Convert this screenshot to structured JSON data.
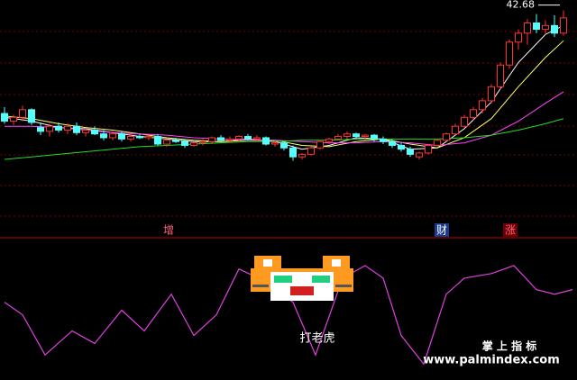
{
  "chart_data": [
    {
      "type": "candlestick",
      "ylim": [
        25,
        43.5
      ],
      "up_color": "#ff3232",
      "down_color": "#54ffff",
      "candles": [
        [
          34.6,
          35.1,
          33.8,
          34.0
        ],
        [
          34.0,
          34.5,
          33.7,
          34.3
        ],
        [
          34.3,
          35.2,
          34.0,
          34.9
        ],
        [
          34.9,
          35.0,
          33.7,
          33.9
        ],
        [
          33.5,
          33.9,
          32.9,
          33.2
        ],
        [
          33.2,
          33.8,
          32.8,
          33.6
        ],
        [
          33.6,
          33.9,
          33.1,
          33.3
        ],
        [
          33.3,
          33.8,
          33.0,
          33.6
        ],
        [
          33.6,
          33.9,
          32.9,
          33.1
        ],
        [
          33.1,
          33.4,
          32.8,
          33.3
        ],
        [
          33.3,
          33.6,
          32.9,
          33.0
        ],
        [
          33.0,
          33.3,
          32.5,
          32.7
        ],
        [
          32.7,
          33.2,
          32.5,
          33.0
        ],
        [
          33.0,
          33.2,
          32.4,
          32.6
        ],
        [
          32.6,
          33.0,
          32.4,
          32.8
        ],
        [
          32.8,
          33.0,
          32.6,
          32.7
        ],
        [
          32.7,
          32.9,
          32.5,
          32.8
        ],
        [
          32.8,
          33.0,
          32.1,
          32.2
        ],
        [
          32.2,
          32.6,
          32.0,
          32.5
        ],
        [
          32.5,
          32.7,
          32.3,
          32.4
        ],
        [
          32.4,
          32.6,
          31.9,
          32.1
        ],
        [
          32.1,
          32.4,
          32.0,
          32.3
        ],
        [
          32.3,
          32.6,
          32.1,
          32.4
        ],
        [
          32.4,
          32.8,
          32.2,
          32.7
        ],
        [
          32.7,
          32.9,
          32.4,
          32.5
        ],
        [
          32.5,
          32.8,
          32.3,
          32.6
        ],
        [
          32.6,
          32.9,
          32.4,
          32.8
        ],
        [
          32.8,
          33.0,
          32.5,
          32.6
        ],
        [
          32.6,
          32.9,
          32.4,
          32.7
        ],
        [
          32.7,
          32.8,
          32.1,
          32.2
        ],
        [
          32.2,
          32.5,
          32.0,
          32.3
        ],
        [
          32.3,
          32.4,
          31.7,
          31.9
        ],
        [
          31.9,
          32.1,
          30.9,
          31.2
        ],
        [
          31.2,
          31.5,
          31.0,
          31.4
        ],
        [
          31.4,
          32.0,
          31.3,
          31.9
        ],
        [
          31.9,
          32.5,
          31.8,
          32.4
        ],
        [
          32.4,
          32.7,
          32.2,
          32.6
        ],
        [
          32.6,
          33.0,
          32.5,
          32.8
        ],
        [
          32.8,
          33.2,
          32.6,
          33.0
        ],
        [
          33.0,
          33.1,
          32.6,
          32.8
        ],
        [
          32.8,
          33.0,
          32.5,
          32.9
        ],
        [
          32.9,
          33.0,
          32.4,
          32.6
        ],
        [
          32.6,
          32.8,
          32.2,
          32.4
        ],
        [
          32.4,
          32.6,
          31.9,
          32.1
        ],
        [
          32.1,
          32.3,
          31.6,
          31.8
        ],
        [
          31.8,
          32.0,
          31.2,
          31.4
        ],
        [
          31.2,
          31.6,
          31.0,
          31.5
        ],
        [
          31.5,
          32.2,
          31.4,
          32.1
        ],
        [
          32.1,
          32.6,
          32.0,
          32.5
        ],
        [
          32.5,
          33.1,
          32.4,
          33.0
        ],
        [
          33.0,
          33.8,
          32.9,
          33.6
        ],
        [
          33.6,
          34.5,
          33.5,
          34.3
        ],
        [
          34.3,
          35.1,
          34.1,
          34.9
        ],
        [
          34.9,
          35.8,
          34.6,
          35.6
        ],
        [
          35.6,
          36.9,
          35.4,
          36.7
        ],
        [
          36.7,
          38.6,
          36.5,
          38.4
        ],
        [
          38.4,
          40.4,
          38.1,
          40.2
        ],
        [
          40.2,
          41.2,
          39.6,
          40.9
        ],
        [
          40.9,
          42.0,
          40.0,
          41.7
        ],
        [
          41.7,
          42.4,
          40.9,
          41.2
        ],
        [
          41.2,
          41.9,
          40.8,
          41.5
        ],
        [
          41.5,
          42.3,
          40.6,
          40.9
        ],
        [
          40.9,
          42.68,
          40.7,
          42.1
        ]
      ],
      "x": [
        0,
        3,
        6,
        9,
        12,
        15,
        18,
        21,
        24,
        27,
        30,
        33,
        36,
        39,
        42,
        45,
        48,
        51,
        54,
        57,
        60,
        62
      ],
      "series": [
        {
          "color": "#ffffff",
          "values": [
            34.3,
            34.0,
            33.5,
            33.4,
            33.1,
            32.8,
            32.6,
            32.4,
            32.4,
            32.6,
            32.4,
            31.8,
            32.1,
            32.7,
            32.6,
            31.8,
            31.9,
            33.4,
            35.5,
            38.6,
            40.8,
            41.5
          ]
        },
        {
          "color": "#ffff66",
          "values": [
            34.4,
            34.2,
            33.8,
            33.5,
            33.3,
            33.0,
            32.7,
            32.5,
            32.4,
            32.5,
            32.5,
            32.1,
            32.0,
            32.4,
            32.6,
            32.2,
            31.9,
            32.7,
            34.2,
            36.7,
            39.0,
            40.3
          ]
        },
        {
          "color": "#ff44ff",
          "values": [
            33.6,
            33.6,
            33.5,
            33.3,
            33.1,
            33.0,
            32.9,
            32.7,
            32.6,
            32.5,
            32.5,
            32.4,
            32.3,
            32.3,
            32.4,
            32.3,
            32.1,
            32.3,
            32.9,
            34.0,
            35.4,
            36.3
          ]
        },
        {
          "color": "#22dd22",
          "values": [
            31.0,
            31.2,
            31.4,
            31.6,
            31.8,
            32.0,
            32.1,
            32.2,
            32.3,
            32.4,
            32.4,
            32.5,
            32.5,
            32.6,
            32.6,
            32.6,
            32.6,
            32.7,
            32.9,
            33.3,
            33.8,
            34.2
          ]
        }
      ],
      "annotations": [
        "增",
        "财",
        "涨"
      ]
    },
    {
      "type": "line",
      "label": "打老虎",
      "ylim": [
        -10,
        100
      ],
      "color": "#e040e0",
      "x": [
        0,
        2,
        4.5,
        7.5,
        10,
        13,
        15.5,
        18.5,
        21,
        23.5,
        26,
        29,
        32,
        34.5,
        37.5,
        40,
        42,
        44,
        46.5,
        49,
        51,
        54,
        56.5,
        59,
        61,
        63
      ],
      "values": [
        50,
        39,
        4,
        25,
        14,
        43,
        25,
        57,
        21,
        39,
        79,
        68,
        50,
        4,
        71,
        82,
        71,
        21,
        -4,
        57,
        71,
        75,
        82,
        61,
        57,
        61
      ]
    }
  ],
  "watermark": {
    "title": "掌 上 指 标",
    "url": "www.palmindex.com"
  }
}
